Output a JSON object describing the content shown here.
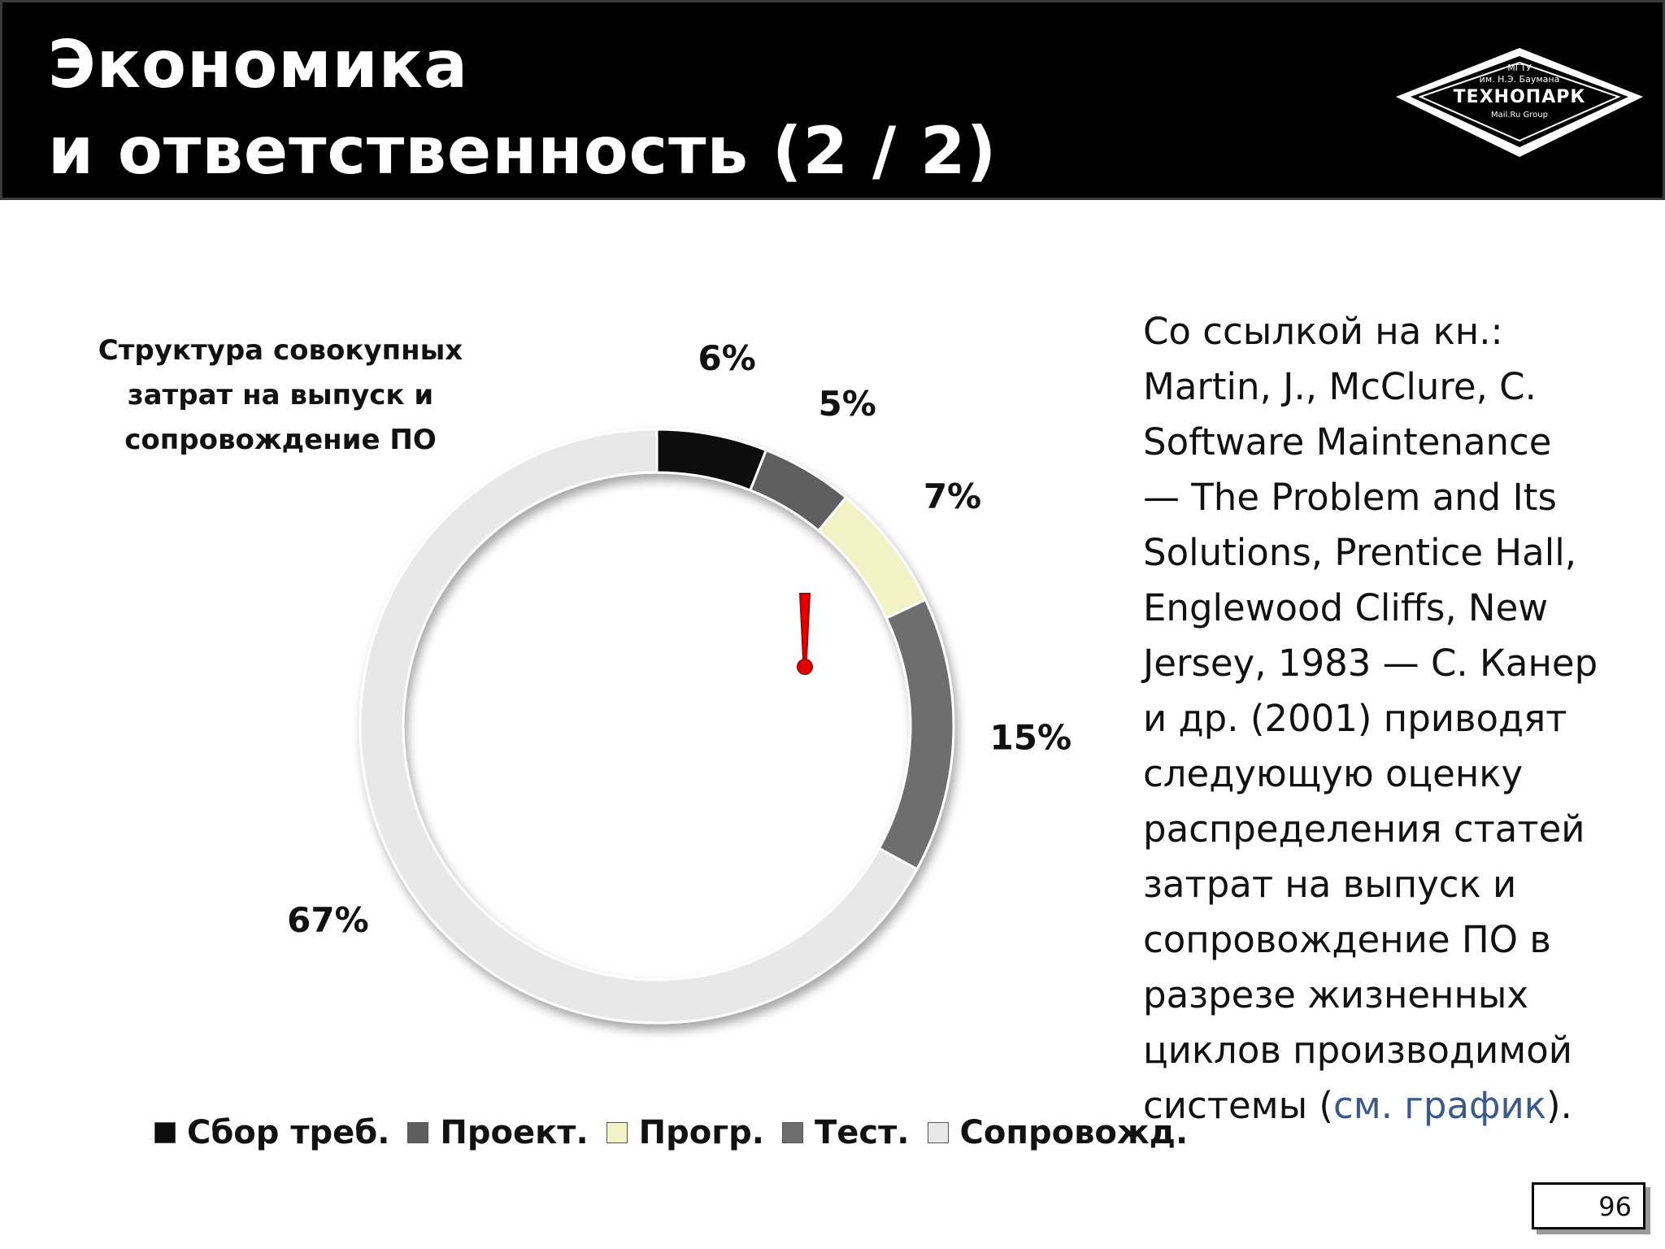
{
  "header": {
    "title_line1": "Экономика",
    "title_line2": "и ответственность (2 / 2)"
  },
  "logo": {
    "line1": "МГТУ",
    "line2": "им. Н.Э. Баумана",
    "line3": "ТЕХНОПАРК",
    "line4": "Mail.Ru Group"
  },
  "chart_data": {
    "type": "pie",
    "style": "doughnut",
    "title": "Структура совокупных затрат на выпуск и сопровождение ПО",
    "categories": [
      "Сбор треб.",
      "Проект.",
      "Прогр.",
      "Тест.",
      "Сопровожд."
    ],
    "values": [
      6,
      5,
      7,
      15,
      67
    ],
    "value_labels": [
      "6%",
      "5%",
      "7%",
      "15%",
      "67%"
    ],
    "colors": [
      "#0d0d0d",
      "#5e5e5e",
      "#f2f2c6",
      "#6e6e6e",
      "#e8e8e8"
    ],
    "legend_position": "bottom",
    "annotation": "!"
  },
  "reference": {
    "lines": [
      "Со ссылкой на кн.:",
      "Martin, J., McClure, C.",
      "Software  Maintenance",
      "— The  Problem and Its",
      "Solutions, Prentice Hall,",
      "Englewood Cliffs, New",
      "Jersey, 1983 — С. Канер",
      "и др. (2001) приводят",
      "следующую оценку",
      "распределения статей",
      "затрат на выпуск и",
      "сопровождение ПО в",
      "разрезе жизненных",
      "циклов производимой"
    ],
    "last_line_prefix": "системы (",
    "link_text": "см. график",
    "last_line_suffix": ")."
  },
  "page_number": "96"
}
